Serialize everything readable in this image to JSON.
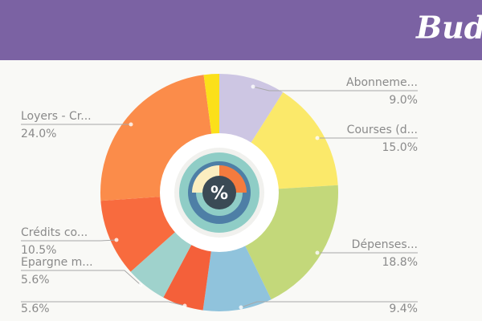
{
  "header": {
    "title": "Budg"
  },
  "chart_data": {
    "type": "pie",
    "categories": [
      "Abonneme...",
      "Courses (d...",
      "Dépenses...",
      null,
      null,
      "Epargne m...",
      "Crédits co...",
      "Loyers - Cr...",
      null
    ],
    "values": [
      9,
      15,
      18.8,
      9.4,
      5.6,
      5.6,
      10.5,
      24,
      2.1
    ],
    "value_labels": [
      "9.0%",
      "15.0%",
      "18.8%",
      "9.4%",
      "5.6%",
      "5.6%",
      "10.5%",
      "24.0%",
      null
    ],
    "colors": [
      "#cdc6e3",
      "#fbe96a",
      "#c3d87a",
      "#90c3dc",
      "#f4603a",
      "#9fd2cc",
      "#f86b3e",
      "#fb8c4a",
      "#fbe01a"
    ]
  }
}
